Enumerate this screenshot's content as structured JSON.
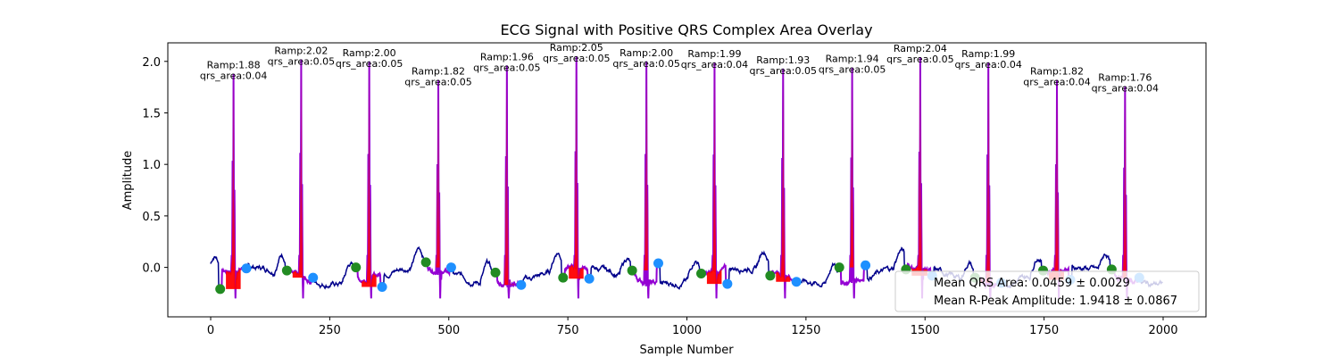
{
  "chart_data": {
    "type": "line",
    "title": "ECG Signal with Positive QRS Complex Area Overlay",
    "xlabel": "Sample Number",
    "ylabel": "Amplitude",
    "xlim": [
      -90,
      2090
    ],
    "ylim": [
      -0.48,
      2.18
    ],
    "xticks": [
      0,
      250,
      500,
      750,
      1000,
      1250,
      1500,
      1750,
      2000
    ],
    "yticks": [
      0.0,
      0.5,
      1.0,
      1.5,
      2.0
    ],
    "xtick_labels": [
      "0",
      "250",
      "500",
      "750",
      "1000",
      "1250",
      "1500",
      "1750",
      "2000"
    ],
    "ytick_labels": [
      "0.0",
      "0.5",
      "1.0",
      "1.5",
      "2.0"
    ],
    "grid": false,
    "colors": {
      "signal": "#00008b",
      "qrs_segment": "#9400d3",
      "qrs_area": "#ff0000",
      "onset_marker": "#228b22",
      "offset_marker": "#1e90ff"
    },
    "beats": [
      {
        "r_x": 48,
        "r_amp": 1.88,
        "ramp_label": "Ramp:1.88",
        "area_label": "qrs_area:0.04",
        "onset_x": 20,
        "onset_y": -0.21,
        "offset_x": 75,
        "offset_y": -0.01
      },
      {
        "r_x": 190,
        "r_amp": 2.02,
        "ramp_label": "Ramp:2.02",
        "area_label": "qrs_area:0.05",
        "onset_x": 160,
        "onset_y": -0.03,
        "offset_x": 215,
        "offset_y": -0.1
      },
      {
        "r_x": 333,
        "r_amp": 2.0,
        "ramp_label": "Ramp:2.00",
        "area_label": "qrs_area:0.05",
        "onset_x": 305,
        "onset_y": 0.0,
        "offset_x": 360,
        "offset_y": -0.19
      },
      {
        "r_x": 478,
        "r_amp": 1.82,
        "ramp_label": "Ramp:1.82",
        "area_label": "qrs_area:0.05",
        "onset_x": 452,
        "onset_y": 0.05,
        "offset_x": 505,
        "offset_y": 0.0
      },
      {
        "r_x": 622,
        "r_amp": 1.96,
        "ramp_label": "Ramp:1.96",
        "area_label": "qrs_area:0.05",
        "onset_x": 598,
        "onset_y": -0.05,
        "offset_x": 652,
        "offset_y": -0.17
      },
      {
        "r_x": 768,
        "r_amp": 2.05,
        "ramp_label": "Ramp:2.05",
        "area_label": "qrs_area:0.05",
        "onset_x": 740,
        "onset_y": -0.1,
        "offset_x": 795,
        "offset_y": -0.11
      },
      {
        "r_x": 915,
        "r_amp": 2.0,
        "ramp_label": "Ramp:2.00",
        "area_label": "qrs_area:0.05",
        "onset_x": 885,
        "onset_y": -0.03,
        "offset_x": 940,
        "offset_y": 0.04
      },
      {
        "r_x": 1058,
        "r_amp": 1.99,
        "ramp_label": "Ramp:1.99",
        "area_label": "qrs_area:0.04",
        "onset_x": 1030,
        "onset_y": -0.06,
        "offset_x": 1085,
        "offset_y": -0.16
      },
      {
        "r_x": 1202,
        "r_amp": 1.93,
        "ramp_label": "Ramp:1.93",
        "area_label": "qrs_area:0.05",
        "onset_x": 1175,
        "onset_y": -0.08,
        "offset_x": 1230,
        "offset_y": -0.14
      },
      {
        "r_x": 1347,
        "r_amp": 1.94,
        "ramp_label": "Ramp:1.94",
        "area_label": "qrs_area:0.05",
        "onset_x": 1320,
        "onset_y": 0.0,
        "offset_x": 1375,
        "offset_y": 0.02
      },
      {
        "r_x": 1490,
        "r_amp": 2.04,
        "ramp_label": "Ramp:2.04",
        "area_label": "qrs_area:0.05",
        "onset_x": 1460,
        "onset_y": -0.02,
        "offset_x": 1515,
        "offset_y": -0.08
      },
      {
        "r_x": 1633,
        "r_amp": 1.99,
        "ramp_label": "Ramp:1.99",
        "area_label": "qrs_area:0.04",
        "onset_x": 1605,
        "onset_y": -0.1,
        "offset_x": 1660,
        "offset_y": -0.15
      },
      {
        "r_x": 1777,
        "r_amp": 1.82,
        "ramp_label": "Ramp:1.82",
        "area_label": "qrs_area:0.04",
        "onset_x": 1748,
        "onset_y": -0.03,
        "offset_x": 1805,
        "offset_y": -0.12
      },
      {
        "r_x": 1920,
        "r_amp": 1.76,
        "ramp_label": "Ramp:1.76",
        "area_label": "qrs_area:0.04",
        "onset_x": 1892,
        "onset_y": -0.02,
        "offset_x": 1950,
        "offset_y": -0.1
      }
    ],
    "legend": {
      "placement": "lower-right",
      "lines": [
        "Mean QRS Area: 0.0459 ± 0.0029",
        "Mean R-Peak Amplitude: 1.9418 ± 0.0867"
      ]
    }
  }
}
